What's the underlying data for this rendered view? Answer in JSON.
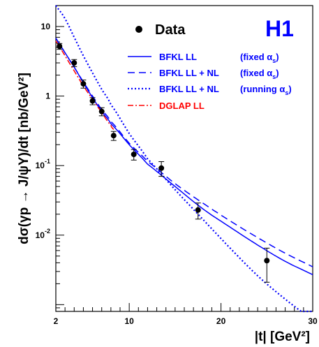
{
  "chart_data": {
    "type": "scatter",
    "experiment_label": "H1",
    "xlabel": "|t| [GeV²]",
    "ylabel": "dσ(γp → J/ψY)/dt [nb/GeV²]",
    "x_scale": "linear",
    "y_scale": "log",
    "xlim": [
      2,
      30
    ],
    "ylim": [
      0.0008,
      20
    ],
    "x_ticks": [
      2,
      10,
      20,
      30
    ],
    "y_ticks": [
      {
        "value": 10,
        "label": "10"
      },
      {
        "value": 1,
        "label": "1"
      },
      {
        "value": 0.1,
        "label": "10",
        "exp": "-1"
      },
      {
        "value": 0.01,
        "label": "10",
        "exp": "-2"
      }
    ],
    "legend_position": "top-right",
    "data": {
      "name": "Data",
      "points": [
        {
          "x": 2.4,
          "y": 5.2,
          "err": 0.5
        },
        {
          "x": 4.0,
          "y": 3.0,
          "err": 0.35
        },
        {
          "x": 5.0,
          "y": 1.5,
          "err": 0.2
        },
        {
          "x": 6.0,
          "y": 0.85,
          "err": 0.1
        },
        {
          "x": 7.0,
          "y": 0.6,
          "err": 0.08
        },
        {
          "x": 8.3,
          "y": 0.27,
          "err": 0.04
        },
        {
          "x": 10.5,
          "y": 0.145,
          "err": 0.025
        },
        {
          "x": 13.5,
          "y": 0.092,
          "err": 0.022
        },
        {
          "x": 17.5,
          "y": 0.023,
          "err": 0.006
        },
        {
          "x": 25.0,
          "y": 0.0043,
          "err": 0.0022
        }
      ]
    },
    "series": [
      {
        "name": "BFKL LL",
        "name_suffix": "(fixed α",
        "name_sub": "s",
        "name_close": ")",
        "style": "solid",
        "color": "#0000ff",
        "x": [
          2,
          3,
          4,
          5,
          6,
          7,
          8,
          10,
          12,
          15,
          18,
          21,
          24,
          27,
          30
        ],
        "y": [
          6.8,
          4.2,
          2.6,
          1.55,
          0.95,
          0.6,
          0.4,
          0.2,
          0.105,
          0.05,
          0.024,
          0.013,
          0.0072,
          0.0042,
          0.0027
        ]
      },
      {
        "name": "BFKL LL + NL",
        "name_suffix": "(fixed α",
        "name_sub": "s",
        "name_close": ")",
        "style": "dashed",
        "color": "#0000ff",
        "x": [
          2,
          3,
          4,
          5,
          6,
          7,
          8,
          10,
          12,
          15,
          18,
          21,
          24,
          27,
          30
        ],
        "y": [
          6.8,
          4.2,
          2.6,
          1.6,
          1.0,
          0.64,
          0.43,
          0.21,
          0.115,
          0.055,
          0.029,
          0.016,
          0.0092,
          0.0055,
          0.0035
        ]
      },
      {
        "name": "BFKL LL + NL",
        "name_suffix": "(running α",
        "name_sub": "s",
        "name_close": ")",
        "style": "dotted",
        "color": "#0000ff",
        "x": [
          2,
          3,
          4,
          5,
          6,
          7,
          8,
          10,
          12,
          15,
          18,
          21,
          24,
          27,
          30
        ],
        "y": [
          20,
          13,
          7.0,
          3.8,
          2.15,
          1.25,
          0.75,
          0.29,
          0.125,
          0.045,
          0.017,
          0.0065,
          0.0026,
          0.0012,
          0.0006
        ]
      },
      {
        "name": "DGLAP LL",
        "name_suffix": "",
        "name_sub": "",
        "name_close": "",
        "style": "dashdot",
        "color": "#ff0000",
        "x": [
          2,
          3,
          4,
          5,
          6,
          7,
          8,
          8.3
        ],
        "y": [
          6.2,
          3.8,
          2.3,
          1.4,
          0.9,
          0.58,
          0.38,
          0.33
        ]
      }
    ]
  }
}
